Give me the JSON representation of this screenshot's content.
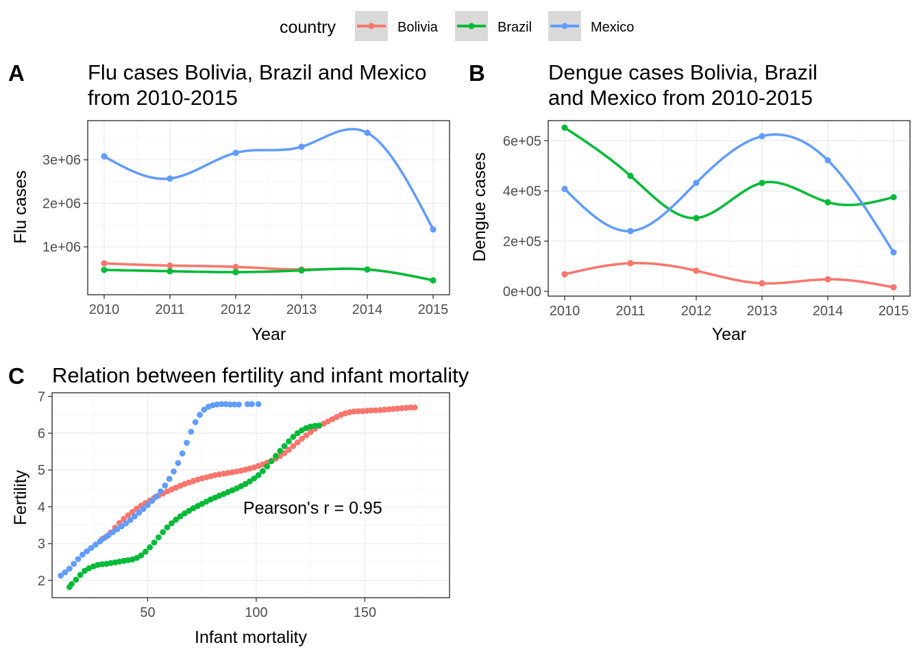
{
  "legend": {
    "title": "country",
    "items": [
      {
        "label": "Bolivia",
        "color": "#F8766D"
      },
      {
        "label": "Brazil",
        "color": "#00BA38"
      },
      {
        "label": "Mexico",
        "color": "#619CFF"
      }
    ]
  },
  "colors": {
    "Bolivia": "#F8766D",
    "Brazil": "#00BA38",
    "Mexico": "#619CFF",
    "grid_major": "#ebebeb",
    "grid_minor": "#f4f4f4",
    "panel_border": "#333333",
    "tick_text": "#4d4d4d"
  },
  "chart_data": [
    {
      "tag": "A",
      "type": "line",
      "title_lines": [
        "Flu cases Bolivia, Brazil and Mexico",
        "from 2010-2015"
      ],
      "xlabel": "Year",
      "ylabel": "Flu cases",
      "smoothed": true,
      "x": [
        2010,
        2011,
        2012,
        2013,
        2014,
        2015
      ],
      "xlim": [
        2009.75,
        2015.25
      ],
      "ylim": [
        -100000,
        3900000
      ],
      "xticks": [
        "2010",
        "2011",
        "2012",
        "2013",
        "2014",
        "2015"
      ],
      "yticks": [
        {
          "value": 1000000,
          "label": "1e+06"
        },
        {
          "value": 2000000,
          "label": "2e+06"
        },
        {
          "value": 3000000,
          "label": "3e+06"
        }
      ],
      "series": [
        {
          "name": "Bolivia",
          "values": [
            620000,
            570000,
            540000,
            480000,
            480000,
            230000
          ]
        },
        {
          "name": "Brazil",
          "values": [
            470000,
            440000,
            420000,
            460000,
            480000,
            230000
          ]
        },
        {
          "name": "Mexico",
          "values": [
            3080000,
            2570000,
            3160000,
            3300000,
            3620000,
            1400000
          ]
        }
      ],
      "grid": true
    },
    {
      "tag": "B",
      "type": "line",
      "title_lines": [
        "Dengue cases Bolivia, Brazil",
        "and Mexico from 2010-2015"
      ],
      "xlabel": "Year",
      "ylabel": "Dengue cases",
      "smoothed": true,
      "x": [
        2010,
        2011,
        2012,
        2013,
        2014,
        2015
      ],
      "xlim": [
        2009.75,
        2015.25
      ],
      "ylim": [
        -19000,
        680000
      ],
      "xticks": [
        "2010",
        "2011",
        "2012",
        "2013",
        "2014",
        "2015"
      ],
      "yticks": [
        {
          "value": 0,
          "label": "0e+00"
        },
        {
          "value": 200000,
          "label": "2e+05"
        },
        {
          "value": 400000,
          "label": "4e+05"
        },
        {
          "value": 600000,
          "label": "6e+05"
        }
      ],
      "series": [
        {
          "name": "Bolivia",
          "values": [
            68000,
            112000,
            82000,
            32000,
            48000,
            16000
          ]
        },
        {
          "name": "Brazil",
          "values": [
            652000,
            460000,
            292000,
            432000,
            355000,
            375000
          ]
        },
        {
          "name": "Mexico",
          "values": [
            408000,
            240000,
            432000,
            618000,
            522000,
            155000
          ]
        }
      ],
      "grid": true
    },
    {
      "tag": "C",
      "type": "scatter",
      "title_lines": [
        "Relation between fertility and infant mortality"
      ],
      "xlabel": "Infant mortality",
      "ylabel": "Fertility",
      "xlim": [
        6,
        189
      ],
      "ylim": [
        1.53,
        7.1
      ],
      "xticks": [
        {
          "value": 50,
          "label": "50"
        },
        {
          "value": 100,
          "label": "100"
        },
        {
          "value": 150,
          "label": "150"
        }
      ],
      "yticks": [
        {
          "value": 2,
          "label": "2"
        },
        {
          "value": 3,
          "label": "3"
        },
        {
          "value": 4,
          "label": "4"
        },
        {
          "value": 5,
          "label": "5"
        },
        {
          "value": 6,
          "label": "6"
        },
        {
          "value": 7,
          "label": "7"
        }
      ],
      "annotation": "Pearson's r =  0.95",
      "annotation_pos": {
        "x": 158,
        "y": 3.98
      },
      "series": [
        {
          "name": "Bolivia",
          "points": [
            [
              173,
              6.7
            ],
            [
              171,
              6.7
            ],
            [
              169,
              6.69
            ],
            [
              167,
              6.68
            ],
            [
              165,
              6.67
            ],
            [
              163,
              6.66
            ],
            [
              161,
              6.65
            ],
            [
              159,
              6.64
            ],
            [
              157,
              6.63
            ],
            [
              155,
              6.62
            ],
            [
              153,
              6.62
            ],
            [
              151,
              6.61
            ],
            [
              149,
              6.6
            ],
            [
              147,
              6.6
            ],
            [
              145,
              6.59
            ],
            [
              143,
              6.57
            ],
            [
              141,
              6.54
            ],
            [
              139,
              6.5
            ],
            [
              137,
              6.44
            ],
            [
              135,
              6.38
            ],
            [
              133,
              6.32
            ],
            [
              131,
              6.26
            ],
            [
              129,
              6.2
            ],
            [
              127,
              6.12
            ],
            [
              125,
              6.03
            ],
            [
              123,
              5.94
            ],
            [
              121,
              5.85
            ],
            [
              119,
              5.75
            ],
            [
              117,
              5.65
            ],
            [
              115,
              5.55
            ],
            [
              113,
              5.46
            ],
            [
              111,
              5.38
            ],
            [
              109,
              5.31
            ],
            [
              107,
              5.25
            ],
            [
              105,
              5.2
            ],
            [
              103,
              5.15
            ],
            [
              101,
              5.11
            ],
            [
              99,
              5.07
            ],
            [
              97,
              5.04
            ],
            [
              95,
              5.01
            ],
            [
              93,
              4.98
            ],
            [
              91,
              4.96
            ],
            [
              89,
              4.94
            ],
            [
              87,
              4.92
            ],
            [
              85,
              4.9
            ],
            [
              83,
              4.88
            ],
            [
              81,
              4.86
            ],
            [
              79,
              4.83
            ],
            [
              77,
              4.8
            ],
            [
              75,
              4.77
            ],
            [
              73,
              4.74
            ],
            [
              71,
              4.7
            ],
            [
              69,
              4.66
            ],
            [
              67,
              4.62
            ],
            [
              65,
              4.57
            ],
            [
              63,
              4.52
            ],
            [
              61,
              4.47
            ],
            [
              59,
              4.42
            ],
            [
              57,
              4.36
            ],
            [
              55,
              4.3
            ],
            [
              53,
              4.24
            ],
            [
              51,
              4.17
            ],
            [
              49,
              4.1
            ],
            [
              47,
              4.03
            ],
            [
              45,
              3.95
            ],
            [
              43,
              3.86
            ],
            [
              41,
              3.77
            ],
            [
              39,
              3.67
            ],
            [
              37,
              3.56
            ],
            [
              35,
              3.43
            ],
            [
              33,
              3.3
            ],
            [
              31,
              3.19
            ],
            [
              29,
              3.12
            ]
          ]
        },
        {
          "name": "Brazil",
          "points": [
            [
              129,
              6.21
            ],
            [
              127,
              6.2
            ],
            [
              125,
              6.18
            ],
            [
              123,
              6.14
            ],
            [
              121,
              6.08
            ],
            [
              119,
              6.0
            ],
            [
              117,
              5.9
            ],
            [
              115,
              5.78
            ],
            [
              113,
              5.65
            ],
            [
              111,
              5.52
            ],
            [
              109,
              5.38
            ],
            [
              107,
              5.24
            ],
            [
              105,
              5.1
            ],
            [
              103,
              4.97
            ],
            [
              101,
              4.86
            ],
            [
              99,
              4.77
            ],
            [
              97,
              4.69
            ],
            [
              95,
              4.62
            ],
            [
              93,
              4.56
            ],
            [
              91,
              4.5
            ],
            [
              89,
              4.45
            ],
            [
              87,
              4.4
            ],
            [
              85,
              4.35
            ],
            [
              83,
              4.3
            ],
            [
              81,
              4.25
            ],
            [
              79,
              4.2
            ],
            [
              77,
              4.14
            ],
            [
              75,
              4.08
            ],
            [
              73,
              4.02
            ],
            [
              71,
              3.96
            ],
            [
              69,
              3.89
            ],
            [
              67,
              3.82
            ],
            [
              65,
              3.74
            ],
            [
              63,
              3.65
            ],
            [
              61,
              3.55
            ],
            [
              59,
              3.44
            ],
            [
              57,
              3.31
            ],
            [
              55,
              3.17
            ],
            [
              53,
              3.03
            ],
            [
              51,
              2.9
            ],
            [
              49,
              2.78
            ],
            [
              47,
              2.68
            ],
            [
              45,
              2.61
            ],
            [
              43,
              2.57
            ],
            [
              41,
              2.55
            ],
            [
              39,
              2.53
            ],
            [
              37,
              2.51
            ],
            [
              35,
              2.49
            ],
            [
              33,
              2.47
            ],
            [
              31,
              2.45
            ],
            [
              29,
              2.44
            ],
            [
              27,
              2.42
            ],
            [
              25,
              2.38
            ],
            [
              23,
              2.33
            ],
            [
              21,
              2.26
            ],
            [
              19,
              2.15
            ],
            [
              17,
              2.02
            ],
            [
              15,
              1.9
            ],
            [
              14,
              1.82
            ]
          ]
        },
        {
          "name": "Mexico",
          "points": [
            [
              101,
              6.79
            ],
            [
              98,
              6.79
            ],
            [
              96,
              6.79
            ],
            [
              92,
              6.78
            ],
            [
              90,
              6.78
            ],
            [
              88,
              6.78
            ],
            [
              86,
              6.79
            ],
            [
              84,
              6.79
            ],
            [
              82,
              6.78
            ],
            [
              80,
              6.76
            ],
            [
              78,
              6.72
            ],
            [
              76,
              6.64
            ],
            [
              74,
              6.5
            ],
            [
              72,
              6.3
            ],
            [
              70,
              6.04
            ],
            [
              68,
              5.74
            ],
            [
              66,
              5.45
            ],
            [
              64,
              5.19
            ],
            [
              62,
              4.96
            ],
            [
              60,
              4.76
            ],
            [
              58,
              4.58
            ],
            [
              56,
              4.42
            ],
            [
              54,
              4.28
            ],
            [
              52,
              4.16
            ],
            [
              50,
              4.05
            ],
            [
              48,
              3.94
            ],
            [
              46,
              3.84
            ],
            [
              44,
              3.74
            ],
            [
              42,
              3.64
            ],
            [
              40,
              3.55
            ],
            [
              38,
              3.47
            ],
            [
              36,
              3.39
            ],
            [
              34,
              3.31
            ],
            [
              32,
              3.23
            ],
            [
              30,
              3.15
            ],
            [
              28,
              3.06
            ],
            [
              26,
              2.97
            ],
            [
              24,
              2.88
            ],
            [
              22,
              2.79
            ],
            [
              20,
              2.7
            ],
            [
              18,
              2.58
            ],
            [
              16,
              2.45
            ],
            [
              14,
              2.32
            ],
            [
              12,
              2.22
            ],
            [
              10,
              2.13
            ]
          ]
        }
      ],
      "grid": true
    }
  ]
}
